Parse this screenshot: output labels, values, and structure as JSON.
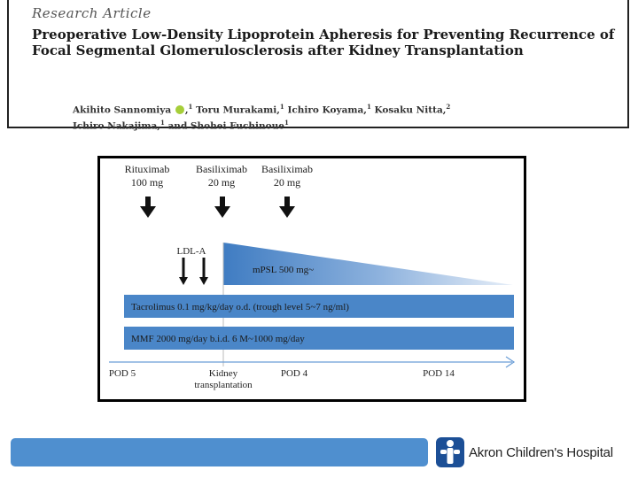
{
  "article": {
    "label": "Research Article",
    "title": "Preoperative Low-Density Lipoprotein Apheresis for Preventing Recurrence of Focal Segmental Glomerulosclerosis after Kidney Transplantation",
    "authors_line1": [
      "Akihito Sannomiya",
      "Toru Murakami,",
      "Ichiro Koyama,",
      "Kosaku Nitta,"
    ],
    "authors_line1_sup": [
      "1",
      "1",
      "1",
      "2"
    ],
    "authors_line2": [
      "Ichiro Nakajima,",
      "and Shohei Fuchinoue"
    ],
    "authors_line2_sup": [
      "1",
      "1"
    ]
  },
  "diagram": {
    "drugs": [
      {
        "name": "Rituximab",
        "dose": "100 mg"
      },
      {
        "name": "Basiliximab",
        "dose": "20 mg"
      },
      {
        "name": "Basiliximab",
        "dose": "20 mg"
      }
    ],
    "ldl_label": "LDL-A",
    "mpsl_label": "mPSL 500 mg~",
    "tacrolimus_label": "Tacrolimus 0.1 mg/kg/day o.d. (trough level 5~7 ng/ml)",
    "mmf_label": "MMF 2000 mg/day b.i.d. 6 M~1000 mg/day",
    "timeline": [
      "POD 5",
      "Kidney",
      "transplantation",
      "POD 4",
      "POD 14"
    ],
    "colors": {
      "bar": "#4a86c8",
      "gradient_light": "#e6eef8"
    }
  },
  "footer": {
    "hospital_name": "Akron Children's Hospital",
    "bar_color": "#4f8fcf"
  }
}
